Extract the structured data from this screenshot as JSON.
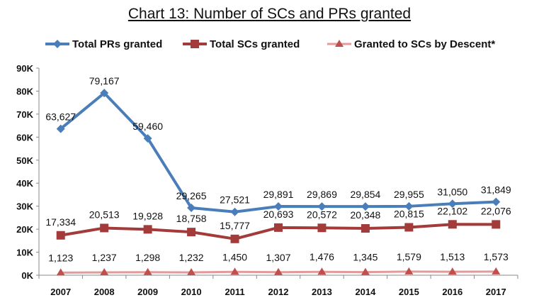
{
  "chart_data": {
    "type": "line",
    "title": "Chart 13: Number of SCs and PRs granted",
    "xlabel": "",
    "ylabel": "",
    "x": [
      "2007",
      "2008",
      "2009",
      "2010",
      "2011",
      "2012",
      "2013",
      "2014",
      "2015",
      "2016",
      "2017"
    ],
    "ylim": [
      0,
      90000
    ],
    "yticks": [
      "0K",
      "10K",
      "20K",
      "30K",
      "40K",
      "50K",
      "60K",
      "70K",
      "80K",
      "90K"
    ],
    "grid": false,
    "legend_position": "top",
    "series": [
      {
        "name": "Total PRs granted",
        "color": "#4a7ebb",
        "marker": "diamond",
        "values": [
          63627,
          79167,
          59460,
          29265,
          27521,
          29891,
          29869,
          29854,
          29955,
          31050,
          31849
        ],
        "labels": [
          "63,627",
          "79,167",
          "59,460",
          "29,265",
          "27,521",
          "29,891",
          "29,869",
          "29,854",
          "29,955",
          "31,050",
          "31,849"
        ]
      },
      {
        "name": "Total SCs granted",
        "color": "#a33b3b",
        "marker": "square",
        "values": [
          17334,
          20513,
          19928,
          18758,
          15777,
          20693,
          20572,
          20348,
          20815,
          22102,
          22076
        ],
        "labels": [
          "17,334",
          "20,513",
          "19,928",
          "18,758",
          "15,777",
          "20,693",
          "20,572",
          "20,348",
          "20,815",
          "22,102",
          "22,076"
        ]
      },
      {
        "name": "Granted to SCs by Descent*",
        "color": "#e29a9a",
        "markerColor": "#c0504d",
        "marker": "triangle",
        "values": [
          1123,
          1237,
          1298,
          1232,
          1450,
          1307,
          1476,
          1345,
          1579,
          1513,
          1573
        ],
        "labels": [
          "1,123",
          "1,237",
          "1,298",
          "1,232",
          "1,450",
          "1,307",
          "1,476",
          "1,345",
          "1,579",
          "1,513",
          "1,573"
        ]
      }
    ]
  }
}
